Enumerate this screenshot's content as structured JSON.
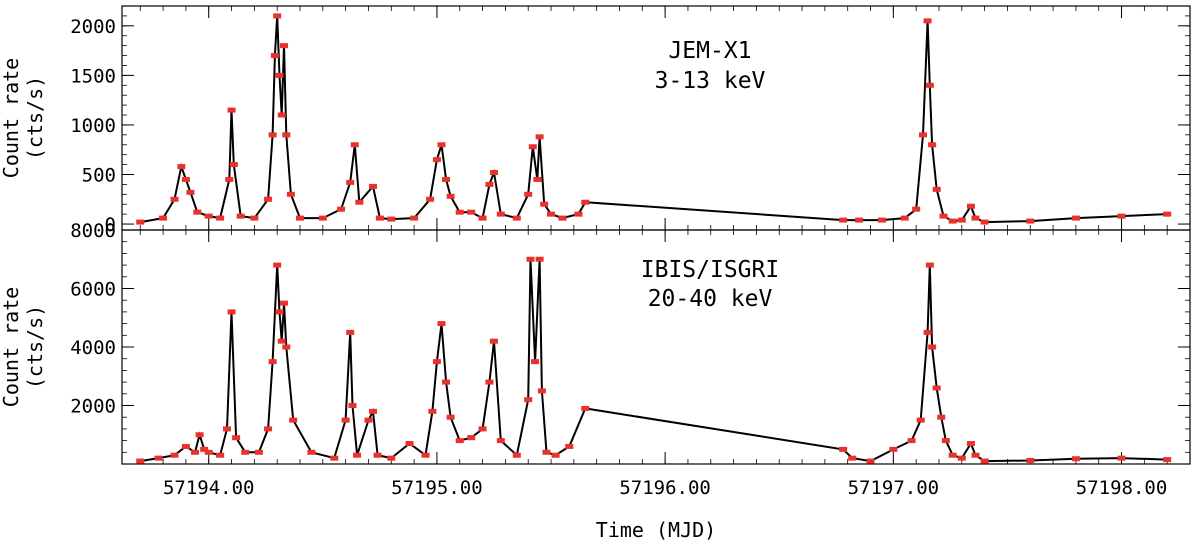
{
  "chart_data": [
    {
      "type": "line",
      "panel": "top",
      "instrument": "JEM-X1",
      "energy": "3-13 keV",
      "ylabel": "Count rate",
      "yunit": "(cts/s)",
      "xlim": [
        57193.62,
        57198.3
      ],
      "ylim": [
        -60,
        2200
      ],
      "y_ticks": [
        "0",
        "500",
        "1000",
        "1500",
        "2000"
      ],
      "x": [
        57193.7,
        57193.8,
        57193.85,
        57193.88,
        57193.9,
        57193.92,
        57193.95,
        57194.0,
        57194.05,
        57194.09,
        57194.1,
        57194.11,
        57194.14,
        57194.2,
        57194.26,
        57194.28,
        57194.29,
        57194.3,
        57194.31,
        57194.32,
        57194.33,
        57194.34,
        57194.36,
        57194.4,
        57194.5,
        57194.58,
        57194.62,
        57194.64,
        57194.66,
        57194.72,
        57194.75,
        57194.8,
        57194.9,
        57194.97,
        57195.0,
        57195.02,
        57195.04,
        57195.06,
        57195.1,
        57195.15,
        57195.2,
        57195.23,
        57195.25,
        57195.28,
        57195.35,
        57195.4,
        57195.42,
        57195.44,
        57195.45,
        57195.47,
        57195.5,
        57195.55,
        57195.62,
        57195.65,
        57196.78,
        57196.85,
        57196.95,
        57197.05,
        57197.1,
        57197.13,
        57197.15,
        57197.16,
        57197.17,
        57197.19,
        57197.22,
        57197.26,
        57197.3,
        57197.34,
        57197.36,
        57197.4,
        57197.6,
        57197.8,
        57198.0,
        57198.2
      ],
      "y": [
        20,
        60,
        250,
        580,
        450,
        320,
        120,
        80,
        60,
        450,
        1150,
        600,
        80,
        60,
        250,
        900,
        1700,
        2100,
        1500,
        1100,
        1800,
        900,
        300,
        60,
        60,
        150,
        420,
        800,
        220,
        380,
        60,
        50,
        60,
        250,
        650,
        800,
        450,
        280,
        120,
        120,
        60,
        400,
        520,
        100,
        60,
        300,
        780,
        450,
        880,
        200,
        100,
        60,
        100,
        220,
        40,
        40,
        40,
        60,
        150,
        900,
        2050,
        1400,
        800,
        350,
        80,
        30,
        40,
        180,
        60,
        20,
        30,
        60,
        80,
        100
      ],
      "annotation": [
        "JEM-X1",
        "3-13 keV"
      ]
    },
    {
      "type": "line",
      "panel": "bottom",
      "instrument": "IBIS/ISGRI",
      "energy": "20-40 keV",
      "ylabel": "Count rate",
      "yunit": "(cts/s)",
      "xlabel": "Time (MJD)",
      "xlim": [
        57193.62,
        57198.3
      ],
      "ylim": [
        0,
        8000
      ],
      "y_ticks": [
        "2000",
        "4000",
        "6000",
        "8000"
      ],
      "x_ticks": [
        "57194.00",
        "57195.00",
        "57196.00",
        "57197.00",
        "57198.00"
      ],
      "x_tick_values": [
        57194.0,
        57195.0,
        57196.0,
        57197.0,
        57198.0
      ],
      "x": [
        57193.7,
        57193.78,
        57193.85,
        57193.9,
        57193.94,
        57193.96,
        57193.98,
        57194.0,
        57194.05,
        57194.08,
        57194.1,
        57194.12,
        57194.16,
        57194.22,
        57194.26,
        57194.28,
        57194.3,
        57194.31,
        57194.32,
        57194.33,
        57194.34,
        57194.37,
        57194.45,
        57194.55,
        57194.6,
        57194.62,
        57194.63,
        57194.65,
        57194.7,
        57194.72,
        57194.74,
        57194.8,
        57194.88,
        57194.95,
        57194.98,
        57195.0,
        57195.02,
        57195.04,
        57195.06,
        57195.1,
        57195.15,
        57195.2,
        57195.23,
        57195.25,
        57195.28,
        57195.35,
        57195.4,
        57195.41,
        57195.43,
        57195.45,
        57195.46,
        57195.48,
        57195.52,
        57195.58,
        57195.65,
        57196.78,
        57196.82,
        57196.9,
        57197.0,
        57197.08,
        57197.12,
        57197.15,
        57197.16,
        57197.17,
        57197.19,
        57197.21,
        57197.23,
        57197.26,
        57197.3,
        57197.34,
        57197.36,
        57197.4,
        57197.6,
        57197.8,
        57198.0,
        57198.2
      ],
      "y": [
        100,
        200,
        300,
        600,
        400,
        1000,
        500,
        400,
        300,
        1200,
        5200,
        900,
        400,
        400,
        1200,
        3500,
        6800,
        5200,
        4200,
        5500,
        4000,
        1500,
        400,
        200,
        1500,
        4500,
        2000,
        300,
        1500,
        1800,
        300,
        200,
        700,
        300,
        1800,
        3500,
        4800,
        2800,
        1600,
        800,
        900,
        1200,
        2800,
        4200,
        800,
        300,
        2200,
        7000,
        3500,
        7000,
        2500,
        400,
        300,
        600,
        1900,
        500,
        200,
        100,
        500,
        800,
        1500,
        4500,
        6800,
        4000,
        2600,
        1600,
        800,
        300,
        200,
        700,
        300,
        100,
        120,
        180,
        200,
        150
      ],
      "annotation": [
        "IBIS/ISGRI",
        "20-40 keV"
      ]
    }
  ]
}
